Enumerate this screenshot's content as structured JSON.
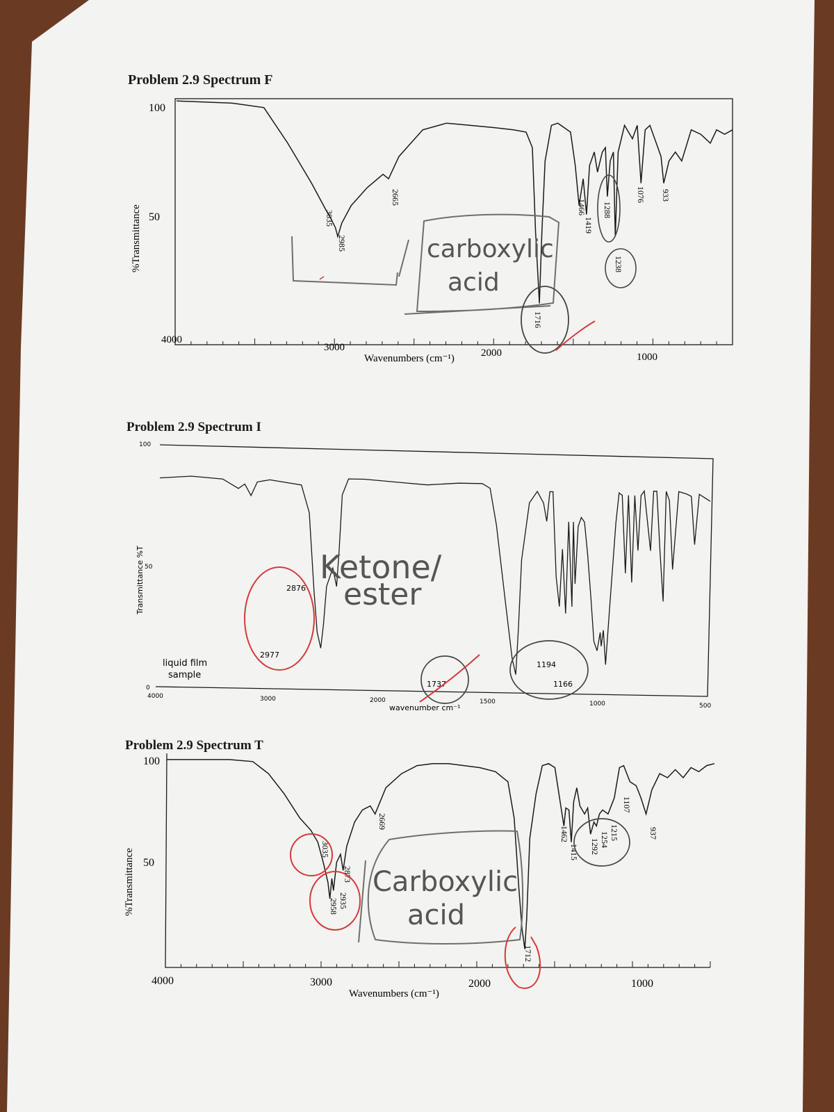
{
  "colors": {
    "paper": "#f3f3f1",
    "table": "#6b3a22",
    "ink": "#1a1a1a",
    "pencil": "#6e6e6e",
    "red_pen": "#d43a3a"
  },
  "chart_data": [
    {
      "type": "line",
      "title": "Problem 2.9 Spectrum F",
      "xlabel": "Wavenumbers (cm⁻¹)",
      "ylabel": "%Transmittance",
      "x_reversed": true,
      "xlim": [
        4000,
        500
      ],
      "ylim": [
        0,
        100
      ],
      "x_ticks": [
        "4000",
        "3000",
        "2000",
        "1000"
      ],
      "y_ticks": [
        "100",
        "50"
      ],
      "grid": false,
      "x": [
        4000,
        3650,
        3450,
        3300,
        3150,
        3060,
        3035,
        3000,
        2985,
        2960,
        2900,
        2800,
        2700,
        2665,
        2600,
        2450,
        2300,
        2150,
        2000,
        1880,
        1800,
        1760,
        1740,
        1716,
        1700,
        1680,
        1640,
        1600,
        1560,
        1520,
        1490,
        1466,
        1440,
        1419,
        1400,
        1370,
        1350,
        1320,
        1300,
        1288,
        1270,
        1250,
        1238,
        1220,
        1180,
        1130,
        1100,
        1076,
        1050,
        1020,
        980,
        950,
        933,
        900,
        860,
        820,
        760,
        700,
        640,
        600,
        550,
        500
      ],
      "y": [
        99,
        98,
        96,
        80,
        62,
        50,
        47,
        42,
        38,
        44,
        52,
        60,
        66,
        64,
        74,
        86,
        89,
        88,
        87,
        86,
        85,
        78,
        40,
        8,
        40,
        72,
        88,
        89,
        87,
        85,
        70,
        52,
        64,
        48,
        70,
        76,
        67,
        76,
        78,
        56,
        72,
        76,
        38,
        76,
        88,
        82,
        88,
        62,
        86,
        88,
        80,
        74,
        62,
        72,
        76,
        72,
        86,
        84,
        80,
        86,
        84,
        86
      ],
      "peak_labels": [
        "3035",
        "2985",
        "2665",
        "1716",
        "1466",
        "1419",
        "1288",
        "1238",
        "1076",
        "933"
      ],
      "annotations": [
        "carboxylic",
        "acid"
      ]
    },
    {
      "type": "line",
      "title": "Problem 2.9 Spectrum I",
      "xlabel": "wavenumber cm⁻¹",
      "ylabel": "Transmittance %T",
      "x_reversed": true,
      "xlim": [
        4000,
        500
      ],
      "ylim": [
        0,
        100
      ],
      "x_ticks": [
        "4000",
        "3000",
        "2000",
        "1500",
        "1000",
        "500"
      ],
      "y_ticks": [
        "100",
        "50",
        "0"
      ],
      "grid": false,
      "x": [
        4000,
        3800,
        3600,
        3500,
        3460,
        3420,
        3380,
        3300,
        3100,
        3050,
        3020,
        3000,
        2977,
        2960,
        2940,
        2900,
        2876,
        2860,
        2840,
        2800,
        2700,
        2500,
        2300,
        2100,
        1950,
        1900,
        1860,
        1800,
        1760,
        1737,
        1720,
        1700,
        1650,
        1600,
        1560,
        1540,
        1520,
        1500,
        1480,
        1460,
        1440,
        1420,
        1400,
        1380,
        1370,
        1360,
        1340,
        1320,
        1300,
        1280,
        1260,
        1240,
        1220,
        1200,
        1194,
        1180,
        1166,
        1140,
        1100,
        1080,
        1060,
        1040,
        1020,
        1000,
        980,
        960,
        940,
        920,
        880,
        860,
        840,
        820,
        800,
        780,
        760,
        740,
        700,
        650,
        620,
        600,
        570,
        500
      ],
      "y": [
        88,
        89,
        88,
        84,
        86,
        81,
        87,
        88,
        86,
        74,
        40,
        22,
        15,
        25,
        42,
        50,
        42,
        58,
        82,
        89,
        89,
        88,
        87,
        88,
        88,
        86,
        70,
        35,
        12,
        5,
        25,
        55,
        80,
        85,
        80,
        72,
        85,
        85,
        48,
        35,
        60,
        32,
        72,
        35,
        72,
        45,
        70,
        74,
        72,
        58,
        40,
        20,
        16,
        24,
        18,
        25,
        10,
        35,
        72,
        85,
        84,
        50,
        84,
        46,
        84,
        60,
        84,
        86,
        60,
        86,
        86,
        60,
        38,
        86,
        82,
        52,
        86,
        85,
        84,
        63,
        85,
        82
      ],
      "peak_labels": [
        "2977",
        "2876",
        "1737",
        "1194",
        "1166"
      ],
      "annotations": [
        "Ketone/",
        "ester",
        "liquid film",
        "sample"
      ]
    },
    {
      "type": "line",
      "title": "Problem 2.9 Spectrum T",
      "xlabel": "Wavenumbers (cm⁻¹)",
      "ylabel": "%Transmittance",
      "x_reversed": true,
      "xlim": [
        4000,
        500
      ],
      "ylim": [
        0,
        100
      ],
      "x_ticks": [
        "4000",
        "3000",
        "2000",
        "1000"
      ],
      "y_ticks": [
        "100",
        "50"
      ],
      "grid": false,
      "x": [
        4000,
        3800,
        3600,
        3450,
        3350,
        3250,
        3150,
        3080,
        3035,
        3000,
        2970,
        2958,
        2945,
        2935,
        2915,
        2890,
        2873,
        2850,
        2800,
        2750,
        2700,
        2669,
        2600,
        2500,
        2400,
        2300,
        2200,
        2100,
        2000,
        1900,
        1820,
        1780,
        1750,
        1730,
        1712,
        1700,
        1680,
        1640,
        1600,
        1560,
        1520,
        1490,
        1462,
        1450,
        1430,
        1415,
        1400,
        1380,
        1360,
        1330,
        1310,
        1292,
        1270,
        1254,
        1235,
        1215,
        1180,
        1140,
        1107,
        1080,
        1040,
        1000,
        970,
        937,
        900,
        850,
        800,
        750,
        700,
        650,
        600,
        550,
        500
      ],
      "y": [
        99,
        99,
        99,
        98,
        92,
        82,
        70,
        64,
        58,
        48,
        38,
        30,
        40,
        34,
        48,
        52,
        44,
        56,
        68,
        74,
        76,
        72,
        85,
        92,
        96,
        97,
        97,
        96,
        95,
        93,
        88,
        70,
        35,
        15,
        5,
        20,
        60,
        82,
        96,
        97,
        95,
        80,
        66,
        75,
        74,
        58,
        78,
        85,
        76,
        72,
        75,
        62,
        68,
        66,
        72,
        74,
        72,
        80,
        95,
        96,
        88,
        86,
        80,
        72,
        84,
        92,
        90,
        94,
        90,
        95,
        93,
        96,
        97
      ],
      "peak_labels": [
        "3035",
        "2958",
        "2935",
        "2873",
        "2669",
        "1712",
        "1462",
        "1415",
        "1292",
        "1254",
        "1215",
        "1107",
        "937"
      ],
      "annotations": [
        "Carboxylic",
        "acid"
      ]
    }
  ]
}
